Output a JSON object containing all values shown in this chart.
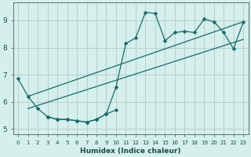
{
  "xlabel": "Humidex (Indice chaleur)",
  "background_color": "#d4efec",
  "grid_color": "#b8cece",
  "line_color": "#1a6b6b",
  "xlim": [
    -0.5,
    23.5
  ],
  "ylim": [
    4.8,
    9.65
  ],
  "xticks": [
    0,
    1,
    2,
    3,
    4,
    5,
    6,
    7,
    8,
    9,
    10,
    11,
    12,
    13,
    14,
    15,
    16,
    17,
    18,
    19,
    20,
    21,
    22,
    23
  ],
  "yticks": [
    5,
    6,
    7,
    8,
    9
  ],
  "line1_x": [
    0,
    1,
    2,
    3,
    4,
    5,
    6,
    7,
    8,
    9,
    10,
    11,
    12,
    13,
    14,
    15,
    16,
    17,
    18,
    19,
    20,
    21,
    22,
    23
  ],
  "line1_y": [
    6.85,
    6.2,
    5.75,
    5.45,
    5.35,
    5.35,
    5.3,
    5.25,
    5.35,
    5.55,
    6.55,
    8.15,
    8.35,
    9.3,
    9.25,
    8.25,
    8.55,
    8.6,
    8.55,
    9.05,
    8.95,
    8.55,
    7.95,
    8.95
  ],
  "line2_x": [
    1,
    23
  ],
  "line2_y": [
    6.2,
    8.95
  ],
  "line3_x": [
    1,
    23
  ],
  "line3_y": [
    5.75,
    8.3
  ],
  "line4_x": [
    3,
    4,
    5,
    6,
    7,
    8,
    9,
    10
  ],
  "line4_y": [
    5.45,
    5.35,
    5.35,
    5.3,
    5.25,
    5.35,
    5.55,
    5.7
  ]
}
